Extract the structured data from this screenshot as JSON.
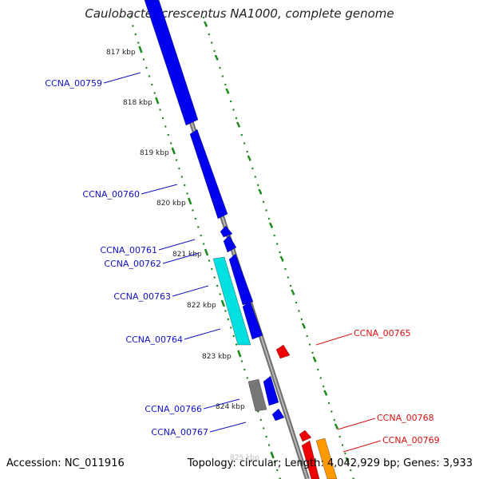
{
  "title": "Caulobacter crescentus NA1000, complete genome",
  "footer": {
    "accession": "Accession: NC_011916",
    "topology": "Topology: circular; Length: 4,042,929 bp; Genes: 3,933"
  },
  "ticks": [
    "817 kbp",
    "818 kbp",
    "819 kbp",
    "820 kbp",
    "821 kbp",
    "822 kbp",
    "823 kbp",
    "824 kbp",
    "825 kbp"
  ],
  "gene_labels": {
    "left": [
      "CCNA_00759",
      "CCNA_00760",
      "CCNA_00761",
      "CCNA_00762",
      "CCNA_00763",
      "CCNA_00764",
      "CCNA_00766",
      "CCNA_00767"
    ],
    "right": [
      "CCNA_00765",
      "CCNA_00768",
      "CCNA_00769"
    ]
  },
  "colors": {
    "forward_strand": "#0000ee",
    "reverse_strand": "#ee0000",
    "rna": "#00e0e0",
    "pseudo": "#777777",
    "other": "#ff9900",
    "backbone": "#999999",
    "tick": "#1a8a1a",
    "left_label": "#1010cc",
    "right_label": "#dd1010"
  }
}
